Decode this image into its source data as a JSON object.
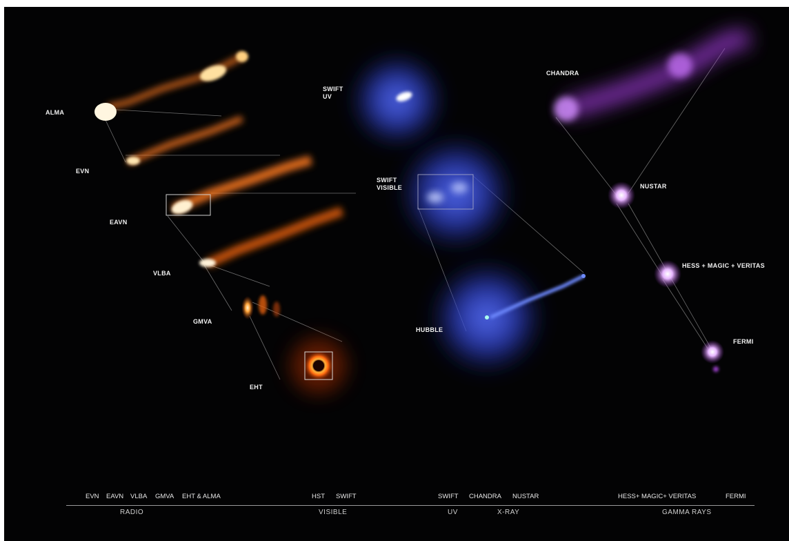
{
  "labels": {
    "alma": "ALMA",
    "evn": "EVN",
    "eavn": "EAVN",
    "vlba": "VLBA",
    "gmva": "GMVA",
    "eht": "EHT",
    "swift_uv": "SWIFT\nUV",
    "swift_visible": "SWIFT\nVISIBLE",
    "hubble": "HUBBLE",
    "chandra": "CHANDRA",
    "nustar": "NUSTAR",
    "hess_magic_veritas": "HESS + MAGIC + VERITAS",
    "fermi": "FERMI"
  },
  "axis": {
    "items": {
      "evn": "EVN",
      "eavn": "EAVN",
      "vlba": "VLBA",
      "gmva": "GMVA",
      "eht_alma": "EHT & ALMA",
      "hst": "HST",
      "swift_visible": "SWIFT",
      "swift_uv": "SWIFT",
      "chandra": "CHANDRA",
      "nustar": "NUSTAR",
      "hess_magic_veritas": "HESS+ MAGIC+ VERITAS",
      "fermi": "FERMI"
    },
    "bands": {
      "radio": "RADIO",
      "visible": "VISIBLE",
      "uv": "UV",
      "xray": "X-RAY",
      "gamma": "GAMMA RAYS"
    }
  },
  "colors": {
    "background": "#030304",
    "radio_glow": "#ff8a2a",
    "optical_glow": "#3a4fd8",
    "gamma_glow": "#b65ad6"
  }
}
